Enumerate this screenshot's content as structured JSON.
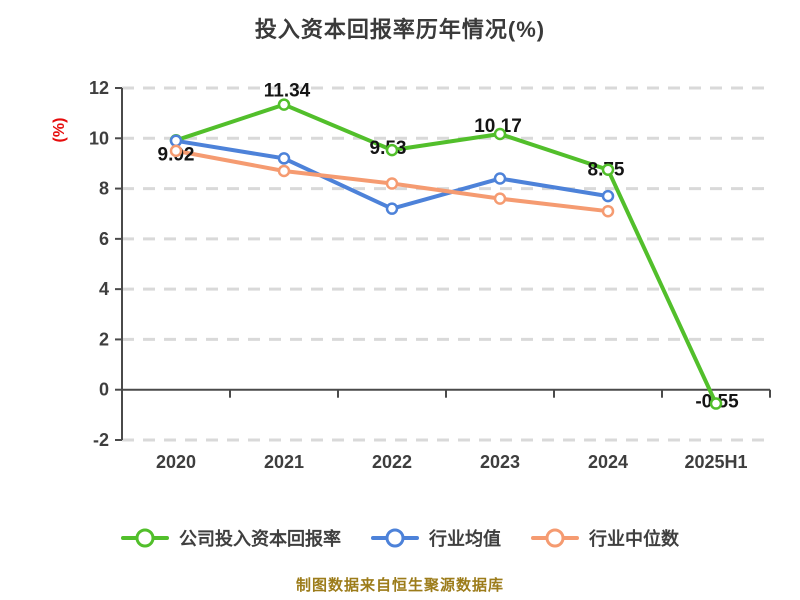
{
  "title": "投入资本回报率历年情况(%)",
  "y_axis": {
    "unit_label": "(%)",
    "tick_labels": [
      "12",
      "10",
      "8",
      "6",
      "4",
      "2",
      "0",
      "-2"
    ],
    "tick_values": [
      12,
      10,
      8,
      6,
      4,
      2,
      0,
      -2
    ]
  },
  "x_axis": {
    "tick_labels": [
      "2020",
      "2021",
      "2022",
      "2023",
      "2024",
      "2025H1"
    ]
  },
  "legend": {
    "items": [
      {
        "label": "公司投入资本回报率",
        "color": "#52bf2b"
      },
      {
        "label": "行业均值",
        "color": "#4d82d9"
      },
      {
        "label": "行业中位数",
        "color": "#f59b71"
      }
    ]
  },
  "footer": {
    "source_note": "制图数据来自恒生聚源数据库"
  },
  "colors": {
    "background": "#ffffff",
    "title_text": "#3a3a3a",
    "axis": "#4a4a4a",
    "tick_text": "#3e3e3e",
    "grid": "#d9d9d9",
    "unit_label": "#e60c0c",
    "data_label": "#141414",
    "source_note": "#9c7c1a",
    "series_green": "#52bf2b",
    "series_blue": "#4d82d9",
    "series_orange": "#f59b71"
  },
  "chart_data": {
    "type": "line",
    "title": "投入资本回报率历年情况(%)",
    "ylabel": "(%)",
    "xlabel": "",
    "ylim": [
      -2,
      12
    ],
    "grid": "horizontal-dashed",
    "legend_position": "bottom",
    "marker": "circle-white-fill-colored-ring",
    "categories": [
      "2020",
      "2021",
      "2022",
      "2023",
      "2024",
      "2025H1"
    ],
    "series": [
      {
        "name": "公司投入资本回报率",
        "color": "#52bf2b",
        "values": [
          9.92,
          11.34,
          9.53,
          10.17,
          8.75,
          -0.55
        ],
        "point_labels": [
          "9.92",
          "11.34",
          "9.53",
          "10.17",
          "8.75",
          "-0.55"
        ]
      },
      {
        "name": "行业均值",
        "color": "#4d82d9",
        "values": [
          9.9,
          9.2,
          7.2,
          8.4,
          7.7,
          null
        ]
      },
      {
        "name": "行业中位数",
        "color": "#f59b71",
        "values": [
          9.5,
          8.7,
          8.2,
          7.6,
          7.1,
          null
        ]
      }
    ]
  }
}
